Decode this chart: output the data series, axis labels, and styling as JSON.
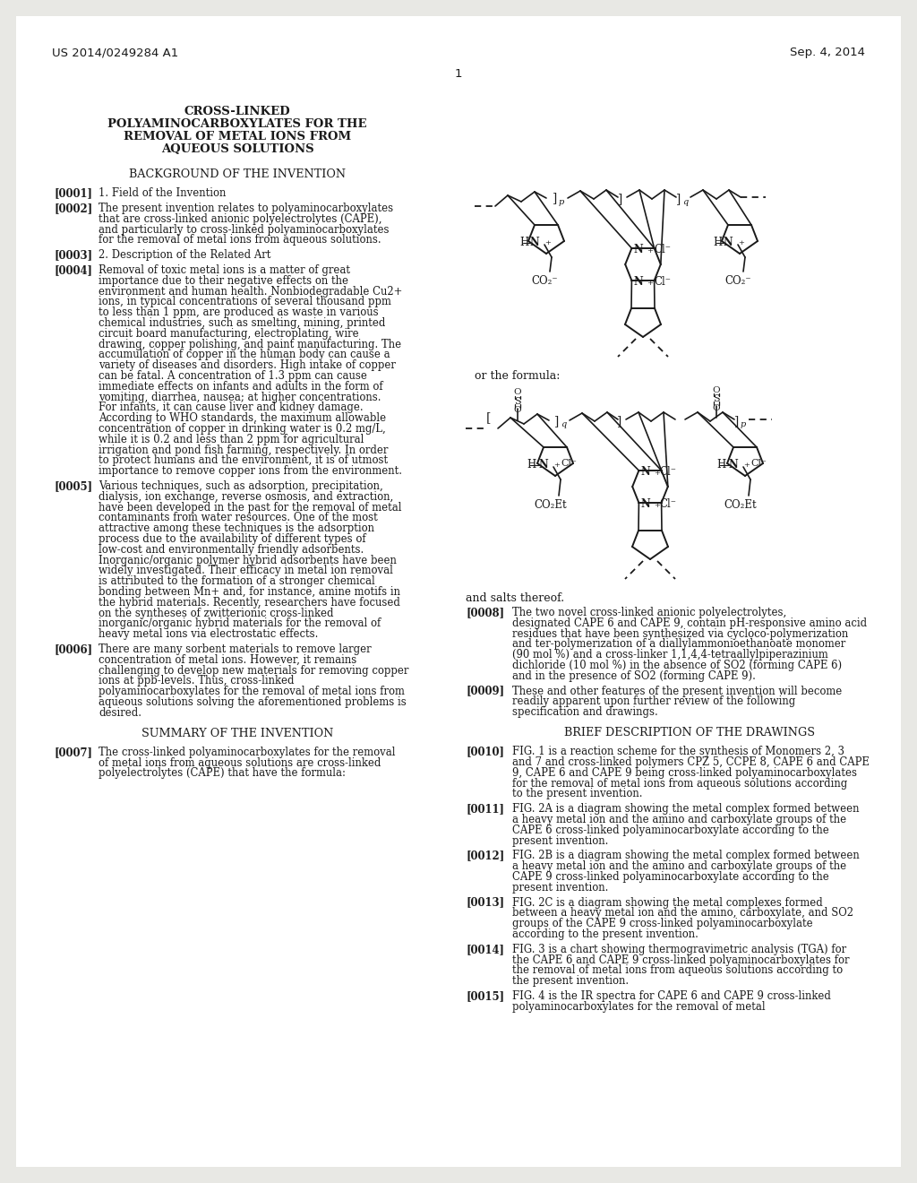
{
  "bg": "#e8e8e4",
  "page_bg": "#ffffff",
  "header_left": "US 2014/0249284 A1",
  "header_right": "Sep. 4, 2014",
  "page_number": "1",
  "title_lines": [
    "CROSS-LINKED",
    "POLYAMINOCARBOXYLATES FOR THE",
    "REMOVAL OF METAL IONS FROM",
    "AQUEOUS SOLUTIONS"
  ],
  "sec1": "BACKGROUND OF THE INVENTION",
  "sec2": "SUMMARY OF THE INVENTION",
  "sec3": "BRIEF DESCRIPTION OF THE DRAWINGS",
  "p0001l": "[0001]",
  "p0001t": "1. Field of the Invention",
  "p0002l": "[0002]",
  "p0002t": "The present invention relates to polyaminocarboxylates that are cross-linked anionic polyelectrolytes (CAPE), and particularly to cross-linked polyaminocarboxylates for the removal of metal ions from aqueous solutions.",
  "p0003l": "[0003]",
  "p0003t": "2. Description of the Related Art",
  "p0004l": "[0004]",
  "p0004t": "Removal of toxic metal ions is a matter of great importance due to their negative effects on the environment and human health. Nonbiodegradable Cu2+ ions, in typical concentrations of several thousand ppm to less than 1 ppm, are produced as waste in various chemical industries, such as smelting, mining, printed circuit board manufacturing, electroplating, wire drawing, copper polishing, and paint manufacturing. The accumulation of copper in the human body can cause a variety of diseases and disorders. High intake of copper can be fatal. A concentration of 1.3 ppm can cause immediate effects on infants and adults in the form of vomiting, diarrhea, nausea; at higher concentrations. For infants, it can cause liver and kidney damage. According to WHO standards, the maximum allowable concentration of copper in drinking water is 0.2 mg/L, while it is 0.2 and less than 2 ppm for agricultural irrigation and pond fish farming, respectively. In order to protect humans and the environment, it is of utmost importance to remove copper ions from the environment.",
  "p0005l": "[0005]",
  "p0005t": "Various techniques, such as adsorption, precipitation, dialysis, ion exchange, reverse osmosis, and extraction, have been developed in the past for the removal of metal contaminants from water resources. One of the most attractive among these techniques is the adsorption process due to the availability of different types of low-cost and environmentally friendly adsorbents. Inorganic/organic polymer hybrid adsorbents have been widely investigated. Their efficacy in metal ion removal is attributed to the formation of a stronger chemical bonding between Mn+ and, for instance, amine motifs in the hybrid materials. Recently, researchers have focused on the syntheses of zwitterionic cross-linked inorganic/organic hybrid materials for the removal of heavy metal ions via electrostatic effects.",
  "p0006l": "[0006]",
  "p0006t": "There are many sorbent materials to remove larger concentration of metal ions. However, it remains challenging to develop new materials for removing copper ions at ppb-levels. Thus, cross-linked polyaminocarboxylates for the removal of metal ions from aqueous solutions solving the aforementioned problems is desired.",
  "p0007l": "[0007]",
  "p0007t": "The cross-linked polyaminocarboxylates for the removal of metal ions from aqueous solutions are cross-linked polyelectrolytes (CAPE) that have the formula:",
  "or_formula": "or the formula:",
  "salts": "and salts thereof.",
  "p0008l": "[0008]",
  "p0008t": "The two novel cross-linked anionic polyelectrolytes, designated CAPE 6 and CAPE 9, contain pH-responsive amino acid residues that have been synthesized via cycloco-polymerization and ter-polymerization of a diallylammonioethanoate monomer (90 mol %) and a cross-linker 1,1,4,4-tetraallylpiperazinium dichloride (10 mol %) in the absence of SO2 (forming CAPE 6) and in the presence of SO2 (forming CAPE 9).",
  "p0009l": "[0009]",
  "p0009t": "These and other features of the present invention will become readily apparent upon further review of the following specification and drawings.",
  "p0010l": "[0010]",
  "p0010t": "FIG. 1 is a reaction scheme for the synthesis of Monomers 2, 3 and 7 and cross-linked polymers CPZ 5, CCPE 8, CAPE 6 and CAPE 9, CAPE 6 and CAPE 9 being cross-linked polyaminocarboxylates for the removal of metal ions from aqueous solutions according to the present invention.",
  "p0011l": "[0011]",
  "p0011t": "FIG. 2A is a diagram showing the metal complex formed between a heavy metal ion and the amino and carboxylate groups of the CAPE 6 cross-linked polyaminocarboxylate according to the present invention.",
  "p0012l": "[0012]",
  "p0012t": "FIG. 2B is a diagram showing the metal complex formed between a heavy metal ion and the amino and carboxylate groups of the CAPE 9 cross-linked polyaminocarboxylate according to the present invention.",
  "p0013l": "[0013]",
  "p0013t": "FIG. 2C is a diagram showing the metal complexes formed between a heavy metal ion and the amino, carboxylate, and SO2 groups of the CAPE 9 cross-linked polyaminocarboxylate according to the present invention.",
  "p0014l": "[0014]",
  "p0014t": "FIG. 3 is a chart showing thermogravimetric analysis (TGA) for the CAPE 6 and CAPE 9 cross-linked polyaminocarboxylates for the removal of metal ions from aqueous solutions according to the present invention.",
  "p0015l": "[0015]",
  "p0015t": "FIG. 4 is the IR spectra for CAPE 6 and CAPE 9 cross-linked polyaminocarboxylates for the removal of metal"
}
